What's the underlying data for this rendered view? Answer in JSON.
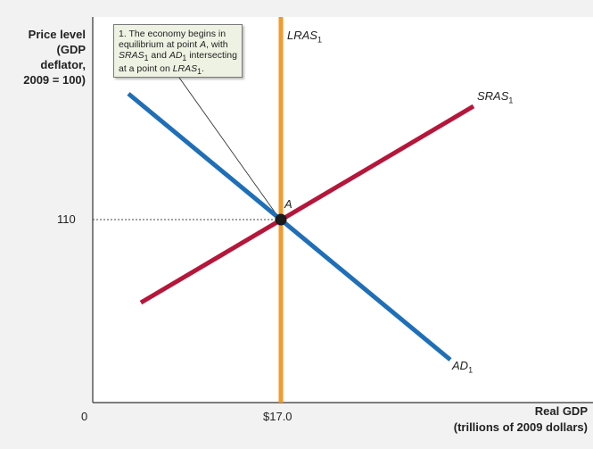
{
  "chart_data": {
    "type": "line",
    "ylabel": "Price level (GDP deflator, 2009 = 100)",
    "ylabel_lines": [
      "Price level",
      "(GDP",
      "deflator,",
      "2009 = 100)"
    ],
    "xlabel_lines": [
      "Real GDP",
      "(trillions of 2009 dollars)"
    ],
    "origin_label": "0",
    "x_tick_label": "$17.0",
    "y_tick_label": "110",
    "equilibrium": {
      "label": "A",
      "x": 17.0,
      "y": 110
    },
    "series": [
      {
        "name": "LRAS",
        "sub": "1",
        "color": "#f39a2c",
        "points": [
          [
            17.0,
            0
          ],
          [
            17.0,
            1
          ]
        ]
      },
      {
        "name": "SRAS",
        "sub": "1",
        "color": "#b5163a",
        "points": [
          [
            0.23,
            0.27
          ],
          [
            0.9,
            0.82
          ]
        ]
      },
      {
        "name": "AD",
        "sub": "1",
        "color": "#1f6fb8",
        "points": [
          [
            0.16,
            0.79
          ],
          [
            0.9,
            0.11
          ]
        ]
      }
    ],
    "annotation": {
      "line1": "1. The economy begins in",
      "line2_pre": "equilibrium at point ",
      "line2_it": "A",
      "line2_post": ", with",
      "line3_a": "SRAS",
      "line3_sub1": "1",
      "line3_mid": " and ",
      "line3_b": "AD",
      "line3_sub2": "1",
      "line3_post": " intersecting",
      "line4_pre": "at a point on ",
      "line4_it": "LRAS",
      "line4_sub": "1",
      "line4_post": "."
    }
  }
}
